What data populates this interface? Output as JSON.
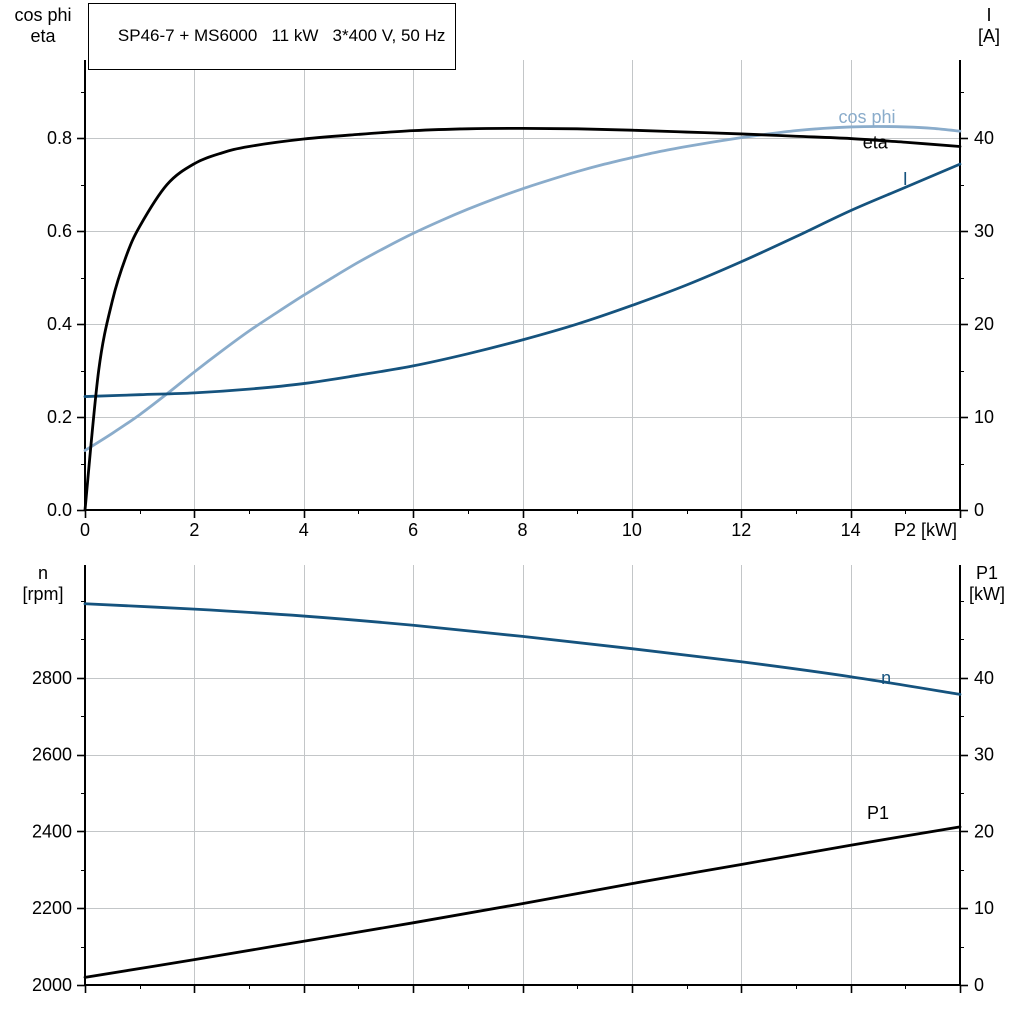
{
  "title_box": "SP46-7 + MS6000   11 kW   3*400 V, 50 Hz",
  "colors": {
    "black": "#000000",
    "dark_blue": "#15537e",
    "light_blue": "#8aaccb",
    "grid": "#c3c6c8",
    "axis": "#000000",
    "background": "#ffffff"
  },
  "chart_data": [
    {
      "type": "line",
      "title": "SP46-7 + MS6000   11 kW   3*400 V, 50 Hz",
      "x_axis": {
        "label": "P2 [kW]",
        "min": 0,
        "max": 16,
        "major_ticks": [
          0,
          2,
          4,
          6,
          8,
          10,
          12,
          14,
          16
        ],
        "tick_labels": [
          "0",
          "2",
          "4",
          "6",
          "8",
          "10",
          "12",
          "14"
        ],
        "minor_step": 1,
        "show_labels": true
      },
      "y_left": {
        "label_lines": [
          "cos phi",
          "eta"
        ],
        "min": 0,
        "max": 0.968,
        "major_ticks": [
          0,
          0.2,
          0.4,
          0.6,
          0.8
        ],
        "tick_labels": [
          "0.0",
          "0.2",
          "0.4",
          "0.6",
          "0.8"
        ],
        "minor_step": 0.1
      },
      "y_right": {
        "label_lines": [
          "I",
          "[A]"
        ],
        "min": 0,
        "max": 48.4,
        "major_ticks": [
          0,
          10,
          20,
          30,
          40
        ],
        "tick_labels": [
          "0",
          "10",
          "20",
          "30",
          "40"
        ],
        "minor_step": 5
      },
      "grid": true,
      "series": [
        {
          "name": "cos phi",
          "color_key": "light_blue",
          "axis": "left",
          "label_at": [
            14.3,
            0.845
          ],
          "points": [
            [
              0,
              0.128
            ],
            [
              0.5,
              0.165
            ],
            [
              1,
              0.205
            ],
            [
              1.5,
              0.25
            ],
            [
              2,
              0.297
            ],
            [
              2.5,
              0.342
            ],
            [
              3,
              0.385
            ],
            [
              3.5,
              0.424
            ],
            [
              4,
              0.462
            ],
            [
              4.5,
              0.498
            ],
            [
              5,
              0.533
            ],
            [
              5.5,
              0.565
            ],
            [
              6,
              0.595
            ],
            [
              6.5,
              0.622
            ],
            [
              7,
              0.647
            ],
            [
              7.5,
              0.67
            ],
            [
              8,
              0.691
            ],
            [
              8.5,
              0.71
            ],
            [
              9,
              0.728
            ],
            [
              9.5,
              0.744
            ],
            [
              10,
              0.758
            ],
            [
              10.5,
              0.771
            ],
            [
              11,
              0.782
            ],
            [
              11.5,
              0.792
            ],
            [
              12,
              0.801
            ],
            [
              12.5,
              0.809
            ],
            [
              13,
              0.816
            ],
            [
              13.5,
              0.821
            ],
            [
              14,
              0.824
            ],
            [
              14.5,
              0.825
            ],
            [
              15,
              0.824
            ],
            [
              15.5,
              0.821
            ],
            [
              16,
              0.815
            ]
          ]
        },
        {
          "name": "I",
          "color_key": "dark_blue",
          "axis": "right",
          "label_at": [
            15.0,
            35.6
          ],
          "points": [
            [
              0,
              12.2
            ],
            [
              1,
              12.4
            ],
            [
              2,
              12.6
            ],
            [
              3,
              13.0
            ],
            [
              4,
              13.6
            ],
            [
              5,
              14.5
            ],
            [
              6,
              15.5
            ],
            [
              7,
              16.8
            ],
            [
              8,
              18.3
            ],
            [
              9,
              20.0
            ],
            [
              10,
              22.0
            ],
            [
              11,
              24.2
            ],
            [
              12,
              26.7
            ],
            [
              13,
              29.4
            ],
            [
              14,
              32.2
            ],
            [
              15,
              34.7
            ],
            [
              16,
              37.2
            ]
          ]
        },
        {
          "name": "eta",
          "color_key": "black",
          "axis": "left",
          "label_at": [
            14.45,
            0.791
          ],
          "points": [
            [
              0,
              0
            ],
            [
              0.25,
              0.3
            ],
            [
              0.5,
              0.45
            ],
            [
              0.75,
              0.545
            ],
            [
              1,
              0.61
            ],
            [
              1.5,
              0.7
            ],
            [
              2,
              0.745
            ],
            [
              2.5,
              0.768
            ],
            [
              3,
              0.782
            ],
            [
              4,
              0.798
            ],
            [
              5,
              0.808
            ],
            [
              6,
              0.816
            ],
            [
              7,
              0.82
            ],
            [
              8,
              0.821
            ],
            [
              9,
              0.82
            ],
            [
              10,
              0.817
            ],
            [
              11,
              0.813
            ],
            [
              12,
              0.809
            ],
            [
              13,
              0.804
            ],
            [
              14,
              0.799
            ],
            [
              15,
              0.791
            ],
            [
              16,
              0.782
            ]
          ]
        }
      ]
    },
    {
      "type": "line",
      "title": "",
      "x_axis": {
        "label": "",
        "min": 0,
        "max": 16,
        "major_ticks": [
          0,
          2,
          4,
          6,
          8,
          10,
          12,
          14,
          16
        ],
        "tick_labels": [],
        "minor_step": 1,
        "show_labels": false
      },
      "y_left": {
        "label_lines": [
          "n",
          "[rpm]"
        ],
        "min": 2000,
        "max": 3094,
        "major_ticks": [
          2000,
          2200,
          2400,
          2600,
          2800
        ],
        "tick_labels": [
          "2000",
          "2200",
          "2400",
          "2600",
          "2800"
        ],
        "minor_step": 100
      },
      "y_right": {
        "label_lines": [
          "P1",
          "[kW]"
        ],
        "min": 0,
        "max": 54.7,
        "major_ticks": [
          0,
          10,
          20,
          30,
          40
        ],
        "tick_labels": [
          "0",
          "10",
          "20",
          "30",
          "40"
        ],
        "minor_step": 5
      },
      "grid": true,
      "series": [
        {
          "name": "n",
          "color_key": "dark_blue",
          "axis": "left",
          "label_at": [
            14.65,
            2800
          ],
          "points": [
            [
              0,
              2993
            ],
            [
              2,
              2979
            ],
            [
              4,
              2961
            ],
            [
              6,
              2937
            ],
            [
              8,
              2908
            ],
            [
              10,
              2876
            ],
            [
              12,
              2842
            ],
            [
              14,
              2803
            ],
            [
              16,
              2757
            ]
          ]
        },
        {
          "name": "P1",
          "color_key": "black",
          "axis": "right",
          "label_at": [
            14.5,
            22.4
          ],
          "points": [
            [
              0,
              1.0
            ],
            [
              2,
              3.3
            ],
            [
              4,
              5.7
            ],
            [
              6,
              8.1
            ],
            [
              8,
              10.6
            ],
            [
              10,
              13.2
            ],
            [
              12,
              15.7
            ],
            [
              14,
              18.2
            ],
            [
              16,
              20.6
            ]
          ]
        }
      ]
    }
  ]
}
